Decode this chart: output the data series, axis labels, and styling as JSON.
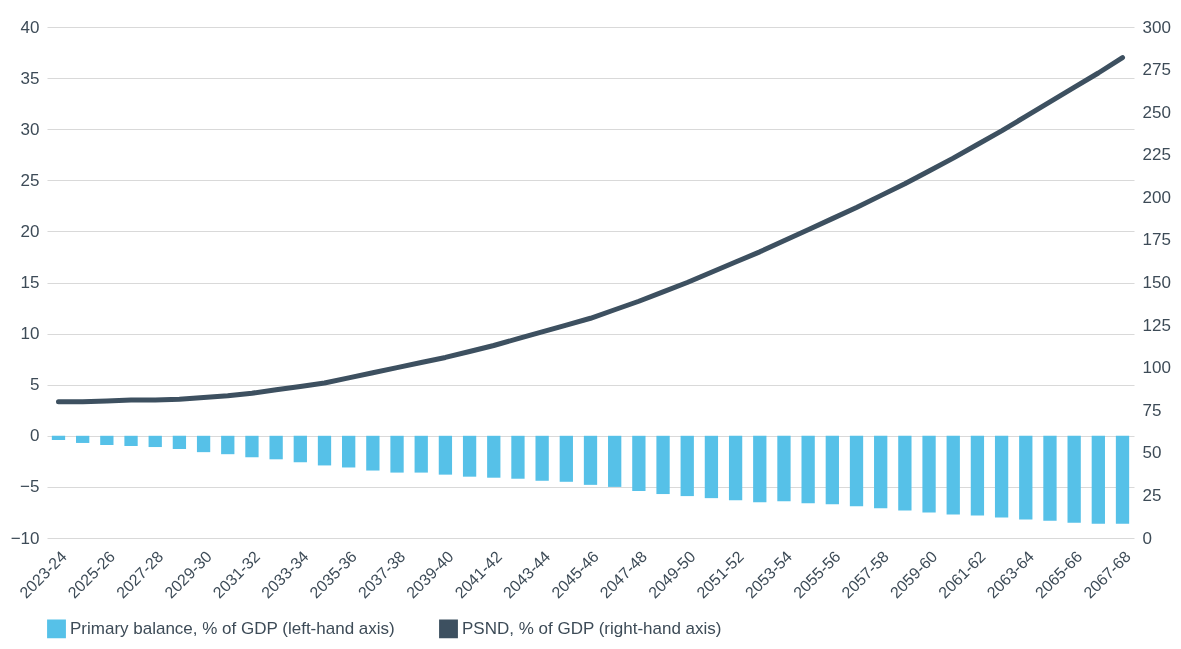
{
  "chart_data": {
    "type": "bar",
    "categories": [
      "2023-24",
      null,
      "2025-26",
      null,
      "2027-28",
      null,
      "2029-30",
      null,
      "2031-32",
      null,
      "2033-34",
      null,
      "2035-36",
      null,
      "2037-38",
      null,
      "2039-40",
      null,
      "2041-42",
      null,
      "2043-44",
      null,
      "2045-46",
      null,
      "2047-48",
      null,
      "2049-50",
      null,
      "2051-52",
      null,
      "2053-54",
      null,
      "2055-56",
      null,
      "2057-58",
      null,
      "2059-60",
      null,
      "2061-62",
      null,
      "2063-64",
      null,
      "2065-66",
      null,
      "2067-68"
    ],
    "series": [
      {
        "name": "Primary balance, % of GDP (left-hand axis)",
        "color": "#56c1e8",
        "values": [
          -0.4,
          -0.7,
          -0.9,
          -1.0,
          -1.1,
          -1.3,
          -1.6,
          -1.8,
          -2.1,
          -2.3,
          -2.6,
          -2.9,
          -3.1,
          -3.4,
          -3.6,
          -3.6,
          -3.8,
          -4.0,
          -4.1,
          -4.2,
          -4.4,
          -4.5,
          -4.8,
          -5.0,
          -5.4,
          -5.7,
          -5.9,
          -6.1,
          -6.3,
          -6.5,
          -6.4,
          -6.6,
          -6.7,
          -6.9,
          -7.1,
          -7.3,
          -7.5,
          -7.7,
          -7.8,
          -8.0,
          -8.2,
          -8.3,
          -8.5,
          -8.6,
          -8.6
        ]
      },
      {
        "name": "PSND, % of GDP (right-hand axis)",
        "type": "line",
        "axis": "y2",
        "color": "#3d5060",
        "values": [
          80,
          80,
          80.5,
          81,
          81,
          81.5,
          82.5,
          83.5,
          85,
          87,
          89,
          91,
          94,
          97,
          100,
          103,
          106,
          109.5,
          113,
          117,
          121,
          125,
          129,
          134,
          139,
          144.5,
          150,
          156,
          162,
          168,
          174.5,
          181,
          187.5,
          194,
          201,
          208,
          215.5,
          223,
          231,
          239,
          247.5,
          256,
          264.5,
          273,
          282
        ]
      }
    ],
    "ylim": [
      -10,
      40
    ],
    "yticks": [
      -10,
      -5,
      0,
      5,
      10,
      15,
      20,
      25,
      30,
      35,
      40
    ],
    "y2lim": [
      0,
      300
    ],
    "y2ticks": [
      0,
      25,
      50,
      75,
      100,
      125,
      150,
      175,
      200,
      225,
      250,
      275,
      300
    ],
    "grid": "y",
    "legend": "bottom",
    "line_style": "solid"
  }
}
